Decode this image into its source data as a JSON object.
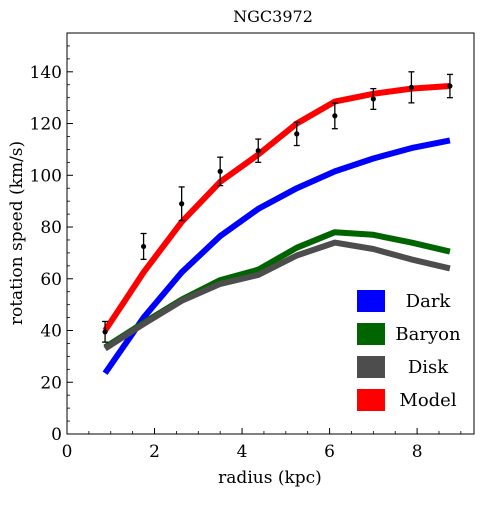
{
  "chart_data": {
    "type": "line",
    "title": "NGC3972",
    "xlabel": "radius (kpc)",
    "ylabel": "rotation speed (km/s)",
    "xlim": [
      0,
      9.3
    ],
    "ylim": [
      0,
      155
    ],
    "xticks": [
      0,
      2,
      4,
      6,
      8
    ],
    "yticks": [
      0,
      20,
      40,
      60,
      80,
      100,
      120,
      140
    ],
    "grid": false,
    "legend_position": "bottom-right",
    "series": [
      {
        "name": "Dark",
        "color": "#0000ff",
        "x": [
          0.87,
          1.75,
          2.62,
          3.5,
          4.37,
          5.25,
          6.12,
          7.0,
          7.87,
          8.75
        ],
        "y": [
          23.5,
          45,
          62.5,
          76.5,
          87,
          95,
          101.5,
          106.5,
          110.5,
          113.5
        ]
      },
      {
        "name": "Baryon",
        "color": "#006400",
        "x": [
          0.87,
          1.75,
          2.62,
          3.5,
          4.37,
          5.25,
          6.12,
          7.0,
          7.87,
          8.75
        ],
        "y": [
          33.5,
          43,
          52,
          59.5,
          63.5,
          72,
          78,
          77,
          74,
          70.5
        ]
      },
      {
        "name": "Disk",
        "color": "#4d4d4d",
        "x": [
          0.87,
          1.75,
          2.62,
          3.5,
          4.37,
          5.25,
          6.12,
          7.0,
          7.87,
          8.75
        ],
        "y": [
          33,
          42.5,
          51.5,
          58,
          61.5,
          69,
          74,
          71.5,
          67.5,
          64
        ]
      },
      {
        "name": "Model",
        "color": "#ff0000",
        "x": [
          0.87,
          1.75,
          2.62,
          3.5,
          4.37,
          5.25,
          6.12,
          7.0,
          7.87,
          8.75
        ],
        "y": [
          40,
          62.5,
          82,
          97.5,
          108,
          120,
          128.5,
          131.5,
          133.5,
          134.5
        ]
      }
    ],
    "observed": {
      "x": [
        0.87,
        1.75,
        2.62,
        3.5,
        4.37,
        5.25,
        6.12,
        7.0,
        7.87,
        8.75
      ],
      "y": [
        39.5,
        72.5,
        89,
        101.5,
        109.5,
        116,
        123,
        129.5,
        134,
        134.5
      ],
      "err": [
        4,
        5,
        6.5,
        5.5,
        4.5,
        4.5,
        5,
        4,
        6,
        4.5
      ]
    }
  }
}
